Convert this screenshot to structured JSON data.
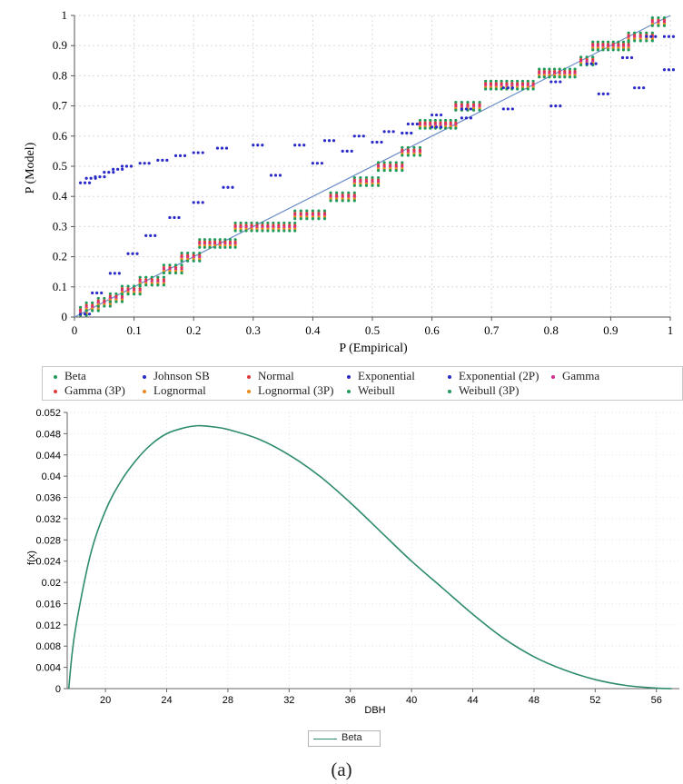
{
  "chart_data": [
    {
      "type": "scatter",
      "title": "",
      "xlabel": "P (Empirical)",
      "ylabel": "P (Model)",
      "xlim": [
        0,
        1
      ],
      "ylim": [
        0,
        1
      ],
      "xticks": [
        "0",
        "0.1",
        "0.2",
        "0.3",
        "0.4",
        "0.5",
        "0.6",
        "0.7",
        "0.8",
        "0.9",
        "1"
      ],
      "yticks": [
        "0",
        "0.1",
        "0.2",
        "0.3",
        "0.4",
        "0.5",
        "0.6",
        "0.7",
        "0.8",
        "0.9",
        "1"
      ],
      "grid": true,
      "reference_line": {
        "x": [
          0,
          1
        ],
        "y": [
          0,
          1
        ],
        "color": "#6a8ec8"
      },
      "legend_position": "bottom",
      "series": [
        {
          "name": "Beta",
          "color": "#1f9a5a"
        },
        {
          "name": "Johnson SB",
          "color": "#2a2ac8"
        },
        {
          "name": "Normal",
          "color": "#e03a3a"
        },
        {
          "name": "Exponential",
          "color": "#2a2ac8"
        },
        {
          "name": "Exponential (2P)",
          "color": "#2a2ac8"
        },
        {
          "name": "Gamma",
          "color": "#d02a8a"
        },
        {
          "name": "Gamma (3P)",
          "color": "#e03a3a"
        },
        {
          "name": "Lognormal",
          "color": "#f08a1a"
        },
        {
          "name": "Lognormal (3P)",
          "color": "#f08a1a"
        },
        {
          "name": "Weibull",
          "color": "#1f9a5a"
        },
        {
          "name": "Weibull (3P)",
          "color": "#1f9a5a"
        }
      ],
      "steps": [
        {
          "x0": 0.01,
          "x1": 0.02,
          "y": 0.02
        },
        {
          "x0": 0.02,
          "x1": 0.04,
          "y": 0.035
        },
        {
          "x0": 0.04,
          "x1": 0.06,
          "y": 0.05
        },
        {
          "x0": 0.06,
          "x1": 0.08,
          "y": 0.065
        },
        {
          "x0": 0.08,
          "x1": 0.11,
          "y": 0.09
        },
        {
          "x0": 0.11,
          "x1": 0.15,
          "y": 0.12
        },
        {
          "x0": 0.15,
          "x1": 0.18,
          "y": 0.16
        },
        {
          "x0": 0.18,
          "x1": 0.21,
          "y": 0.2
        },
        {
          "x0": 0.21,
          "x1": 0.27,
          "y": 0.245
        },
        {
          "x0": 0.27,
          "x1": 0.37,
          "y": 0.3
        },
        {
          "x0": 0.37,
          "x1": 0.42,
          "y": 0.34
        },
        {
          "x0": 0.43,
          "x1": 0.47,
          "y": 0.4
        },
        {
          "x0": 0.47,
          "x1": 0.51,
          "y": 0.45
        },
        {
          "x0": 0.51,
          "x1": 0.55,
          "y": 0.5
        },
        {
          "x0": 0.55,
          "x1": 0.58,
          "y": 0.55
        },
        {
          "x0": 0.58,
          "x1": 0.64,
          "y": 0.64
        },
        {
          "x0": 0.64,
          "x1": 0.68,
          "y": 0.7
        },
        {
          "x0": 0.69,
          "x1": 0.77,
          "y": 0.77
        },
        {
          "x0": 0.78,
          "x1": 0.84,
          "y": 0.81
        },
        {
          "x0": 0.85,
          "x1": 0.87,
          "y": 0.85
        },
        {
          "x0": 0.87,
          "x1": 0.93,
          "y": 0.9
        },
        {
          "x0": 0.93,
          "x1": 0.97,
          "y": 0.93
        },
        {
          "x0": 0.97,
          "x1": 0.99,
          "y": 0.98
        }
      ],
      "exponential_points": [
        [
          0.01,
          0.445
        ],
        [
          0.02,
          0.46
        ],
        [
          0.035,
          0.465
        ],
        [
          0.05,
          0.48
        ],
        [
          0.065,
          0.49
        ],
        [
          0.08,
          0.5
        ],
        [
          0.11,
          0.51
        ],
        [
          0.14,
          0.52
        ],
        [
          0.17,
          0.535
        ],
        [
          0.2,
          0.545
        ],
        [
          0.24,
          0.56
        ],
        [
          0.3,
          0.57
        ],
        [
          0.37,
          0.57
        ],
        [
          0.42,
          0.585
        ],
        [
          0.47,
          0.6
        ],
        [
          0.52,
          0.615
        ],
        [
          0.56,
          0.64
        ],
        [
          0.6,
          0.67
        ],
        [
          0.65,
          0.69
        ],
        [
          0.72,
          0.76
        ],
        [
          0.8,
          0.78
        ],
        [
          0.86,
          0.84
        ],
        [
          0.92,
          0.86
        ],
        [
          0.96,
          0.93
        ],
        [
          0.99,
          0.93
        ]
      ],
      "exponential_2p_points": [
        [
          0.01,
          0.01
        ],
        [
          0.03,
          0.08
        ],
        [
          0.06,
          0.145
        ],
        [
          0.09,
          0.21
        ],
        [
          0.12,
          0.27
        ],
        [
          0.16,
          0.33
        ],
        [
          0.2,
          0.38
        ],
        [
          0.25,
          0.43
        ],
        [
          0.33,
          0.47
        ],
        [
          0.4,
          0.51
        ],
        [
          0.45,
          0.55
        ],
        [
          0.5,
          0.58
        ],
        [
          0.55,
          0.61
        ],
        [
          0.6,
          0.63
        ],
        [
          0.65,
          0.66
        ],
        [
          0.72,
          0.69
        ],
        [
          0.8,
          0.7
        ],
        [
          0.88,
          0.74
        ],
        [
          0.94,
          0.76
        ],
        [
          0.99,
          0.82
        ]
      ]
    },
    {
      "type": "line",
      "title": "",
      "xlabel": "DBH",
      "ylabel": "f(x)",
      "xlim": [
        17.5,
        57.5
      ],
      "ylim": [
        0,
        0.052
      ],
      "xticks": [
        "20",
        "24",
        "28",
        "32",
        "36",
        "40",
        "44",
        "48",
        "52",
        "56"
      ],
      "yticks": [
        "0",
        "0.004",
        "0.008",
        "0.012",
        "0.016",
        "0.02",
        "0.024",
        "0.028",
        "0.032",
        "0.036",
        "0.04",
        "0.044",
        "0.048",
        "0.052"
      ],
      "grid": true,
      "legend_position": "bottom",
      "series": [
        {
          "name": "Beta",
          "color": "#2e8b6e",
          "x": [
            17.6,
            18,
            19,
            20,
            21,
            22,
            23,
            24,
            25,
            26,
            27,
            28,
            30,
            32,
            34,
            36,
            38,
            40,
            42,
            44,
            46,
            48,
            50,
            52,
            54,
            56,
            57
          ],
          "y": [
            0,
            0.0105,
            0.025,
            0.0335,
            0.039,
            0.043,
            0.046,
            0.048,
            0.049,
            0.0495,
            0.0493,
            0.0488,
            0.047,
            0.044,
            0.04,
            0.035,
            0.0295,
            0.024,
            0.019,
            0.014,
            0.0095,
            0.006,
            0.0035,
            0.0017,
            0.0006,
            0.0001,
            0
          ]
        }
      ]
    }
  ],
  "legend": {
    "items": [
      "Beta",
      "Johnson SB",
      "Normal",
      "Exponential",
      "Exponential (2P)",
      "Gamma",
      "Gamma (3P)",
      "Lognormal",
      "Lognormal (3P)",
      "Weibull",
      "Weibull (3P)"
    ],
    "colors": [
      "#1f9a5a",
      "#2a2ac8",
      "#e03a3a",
      "#2a2ac8",
      "#2a2ac8",
      "#d02a8a",
      "#e03a3a",
      "#f08a1a",
      "#f08a1a",
      "#1f9a5a",
      "#1f9a5a"
    ]
  },
  "legend2": {
    "label": "Beta"
  },
  "caption": "(a)"
}
